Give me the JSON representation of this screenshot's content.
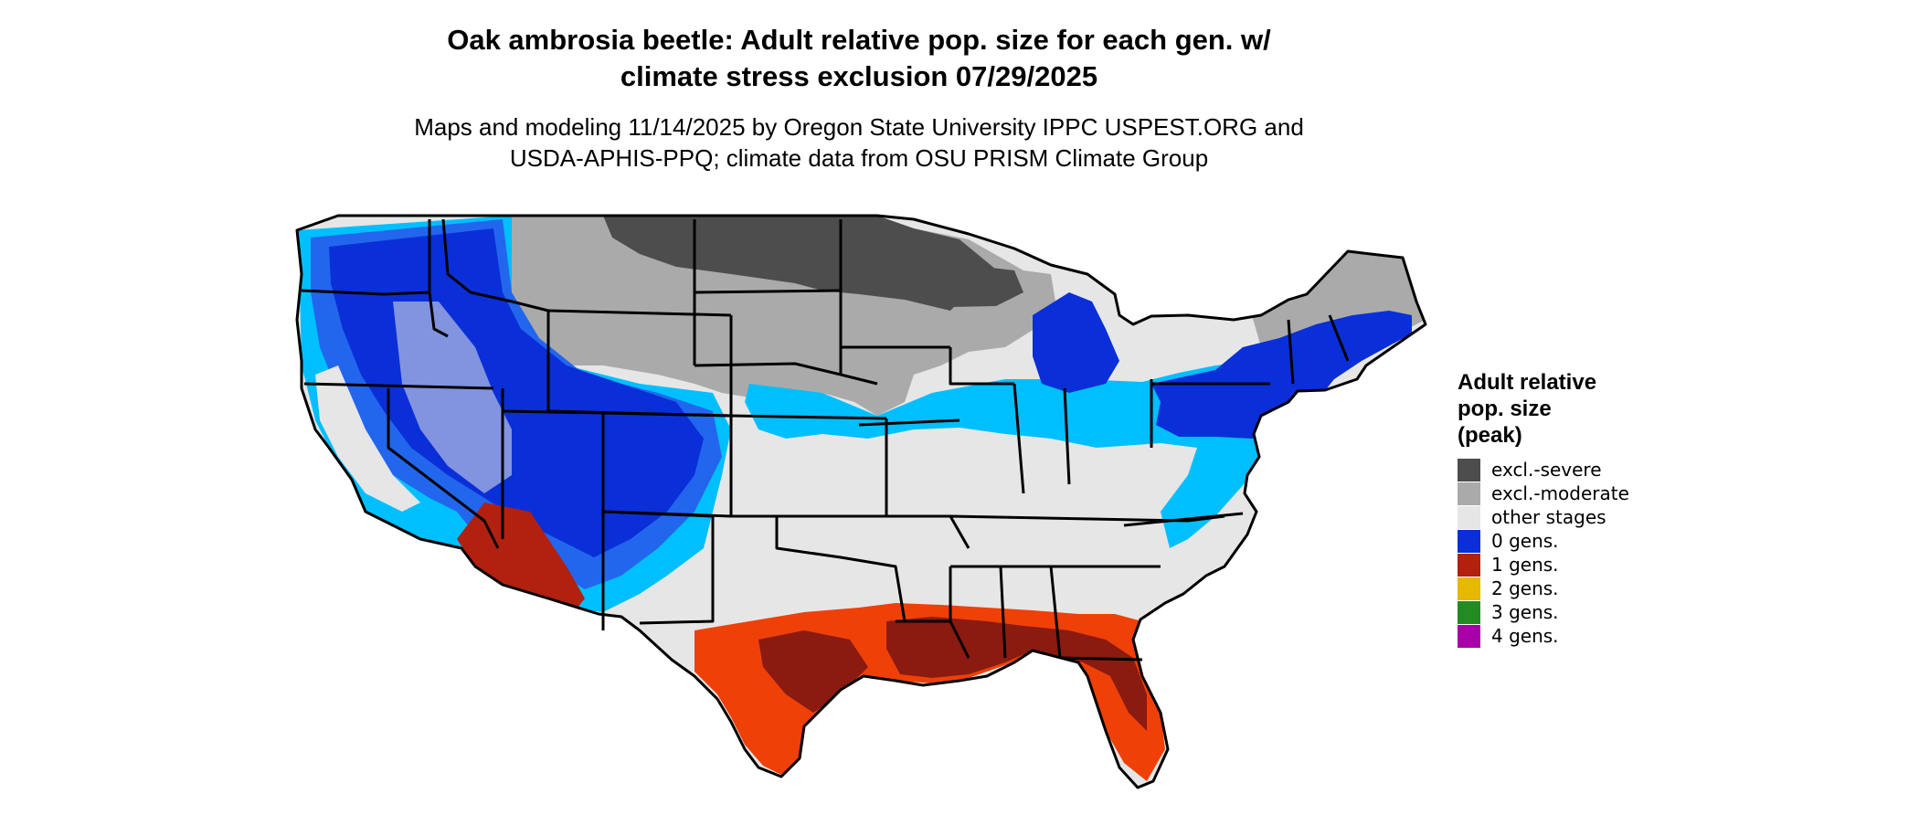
{
  "header": {
    "title_line1": "Oak ambrosia beetle: Adult relative pop. size for each gen. w/",
    "title_line2": "climate stress exclusion 07/29/2025",
    "subtitle_line1": "Maps and modeling 11/14/2025 by Oregon State University IPPC USPEST.ORG and",
    "subtitle_line2": "USDA-APHIS-PPQ; climate data from OSU PRISM Climate Group"
  },
  "legend": {
    "title_line1": "Adult relative",
    "title_line2": "pop. size",
    "title_line3": "(peak)",
    "items": [
      {
        "label": "excl.-severe",
        "color": "#4d4d4d"
      },
      {
        "label": "excl.-moderate",
        "color": "#aaaaaa"
      },
      {
        "label": "other stages",
        "color": "#e6e6e6"
      },
      {
        "label": "0 gens.",
        "color": "#0a2fd8"
      },
      {
        "label": "1 gens.",
        "color": "#b22010"
      },
      {
        "label": "2 gens.",
        "color": "#e6b800"
      },
      {
        "label": "3 gens.",
        "color": "#228b22"
      },
      {
        "label": "4 gens.",
        "color": "#a800a8"
      }
    ]
  },
  "map_colors": {
    "land_other": "#e6e6e6",
    "excl_severe": "#4d4d4d",
    "excl_moderate": "#aaaaaa",
    "zero_gens_dark": "#0a2fd8",
    "zero_gens_mid": "#2266ee",
    "zero_gens_light": "#00bfff",
    "one_gen_dark": "#8b1a10",
    "one_gen_bright": "#ef4008",
    "borders": "#000000"
  }
}
